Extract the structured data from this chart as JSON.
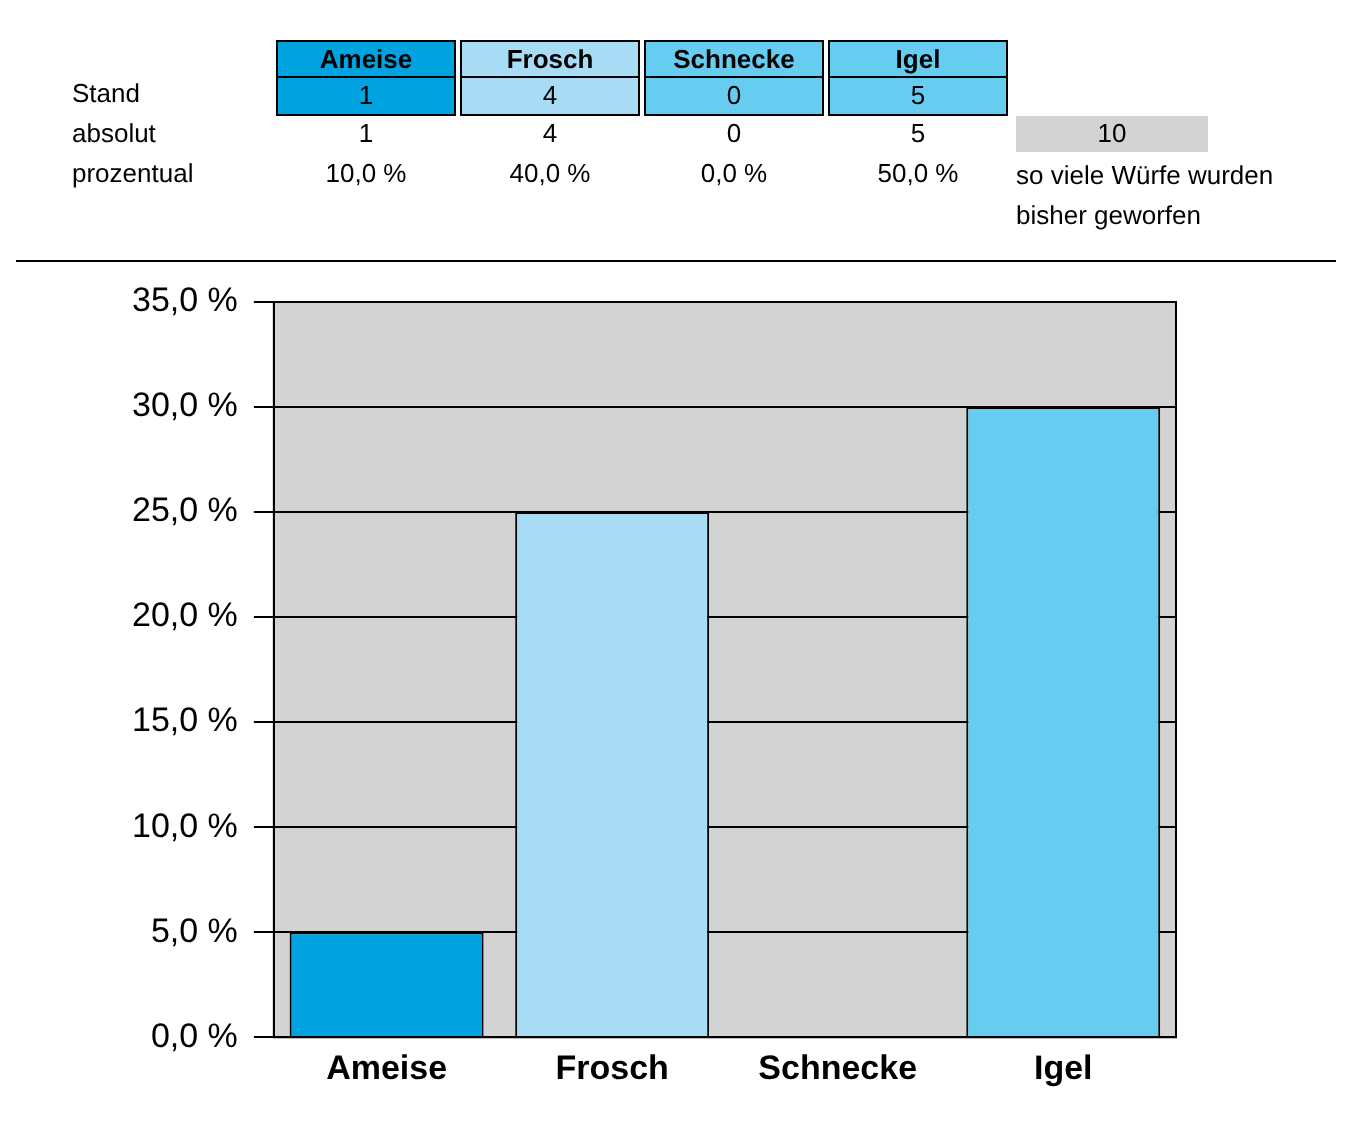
{
  "chart_data": {
    "type": "bar",
    "categories": [
      "Ameise",
      "Frosch",
      "Schnecke",
      "Igel"
    ],
    "values": [
      5,
      25,
      0,
      30
    ],
    "colors": [
      "#00a3e0",
      "#a8dcf5",
      "#66ccf0",
      "#66ccf0"
    ],
    "ylim": [
      0,
      35
    ],
    "yticks": [
      {
        "value": 0,
        "label": "0,0 %"
      },
      {
        "value": 5,
        "label": "5,0 %"
      },
      {
        "value": 10,
        "label": "10,0 %"
      },
      {
        "value": 15,
        "label": "15,0 %"
      },
      {
        "value": 20,
        "label": "20,0 %"
      },
      {
        "value": 25,
        "label": "25,0 %"
      },
      {
        "value": 30,
        "label": "30,0 %"
      },
      {
        "value": 35,
        "label": "35,0 %"
      }
    ],
    "grid": "y",
    "annotations": [
      "Stand",
      "1",
      "4",
      "0",
      "5",
      "absolut",
      "1",
      "4",
      "0",
      "5",
      "10",
      "prozentual",
      "10,0 %",
      "40,0 %",
      "0,0 %",
      "50,0 %",
      "so viele Würfe wurden bisher geworfen"
    ]
  }
}
